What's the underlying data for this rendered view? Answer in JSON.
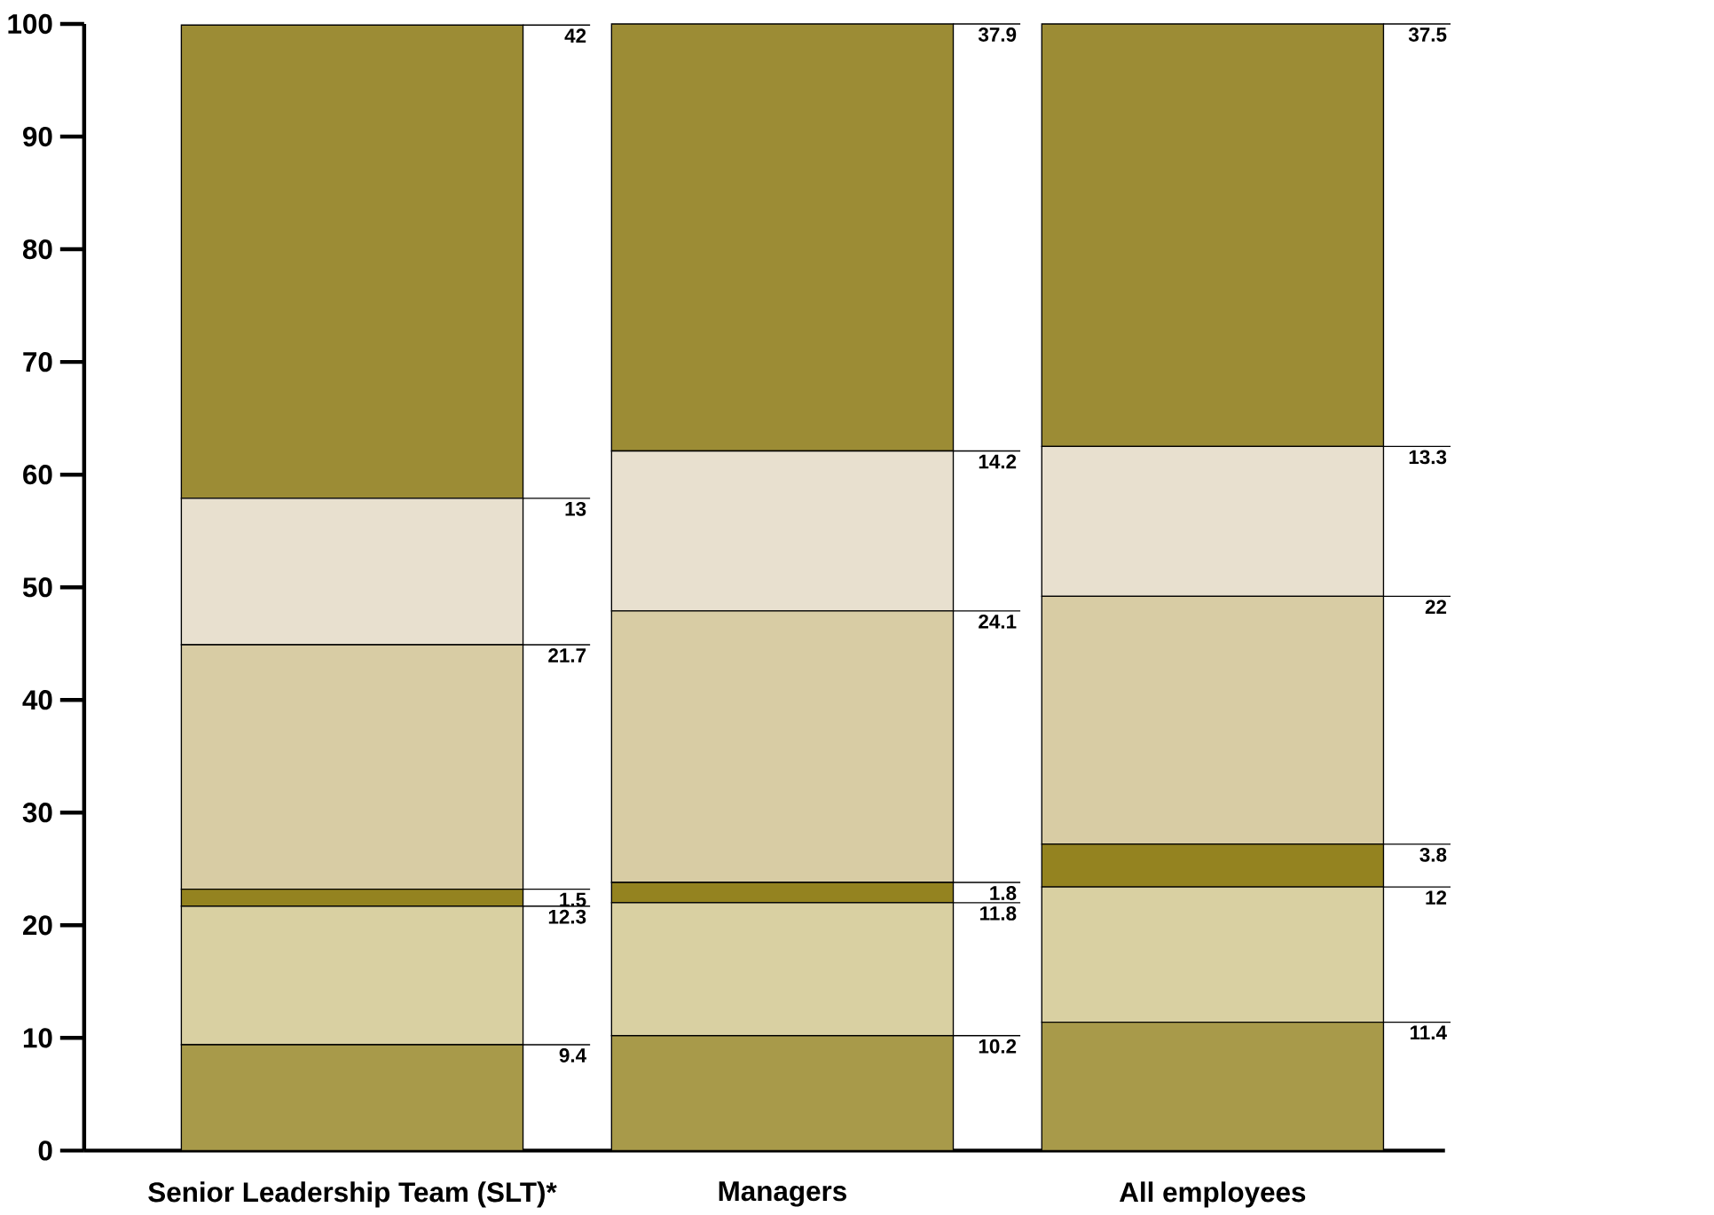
{
  "chart_data": {
    "type": "bar",
    "stacked": true,
    "data_labels": true,
    "categories": [
      "Senior Leadership Team (SLT)*",
      "Managers",
      "All employees"
    ],
    "series": [
      {
        "color": "#a89a4a",
        "values": [
          9.4,
          10.2,
          11.4
        ]
      },
      {
        "color": "#d9d0a2",
        "values": [
          12.3,
          11.8,
          12
        ]
      },
      {
        "color": "#948320",
        "values": [
          1.5,
          1.8,
          3.8
        ]
      },
      {
        "color": "#d8cca4",
        "values": [
          21.7,
          24.1,
          22
        ]
      },
      {
        "color": "#e8e0cf",
        "values": [
          13,
          14.2,
          13.3
        ]
      },
      {
        "color": "#9c8c35",
        "values": [
          42,
          37.9,
          37.5
        ]
      }
    ],
    "ylim": [
      0,
      100
    ],
    "yticks": [
      0,
      10,
      20,
      30,
      40,
      50,
      60,
      70,
      80,
      90,
      100
    ]
  }
}
